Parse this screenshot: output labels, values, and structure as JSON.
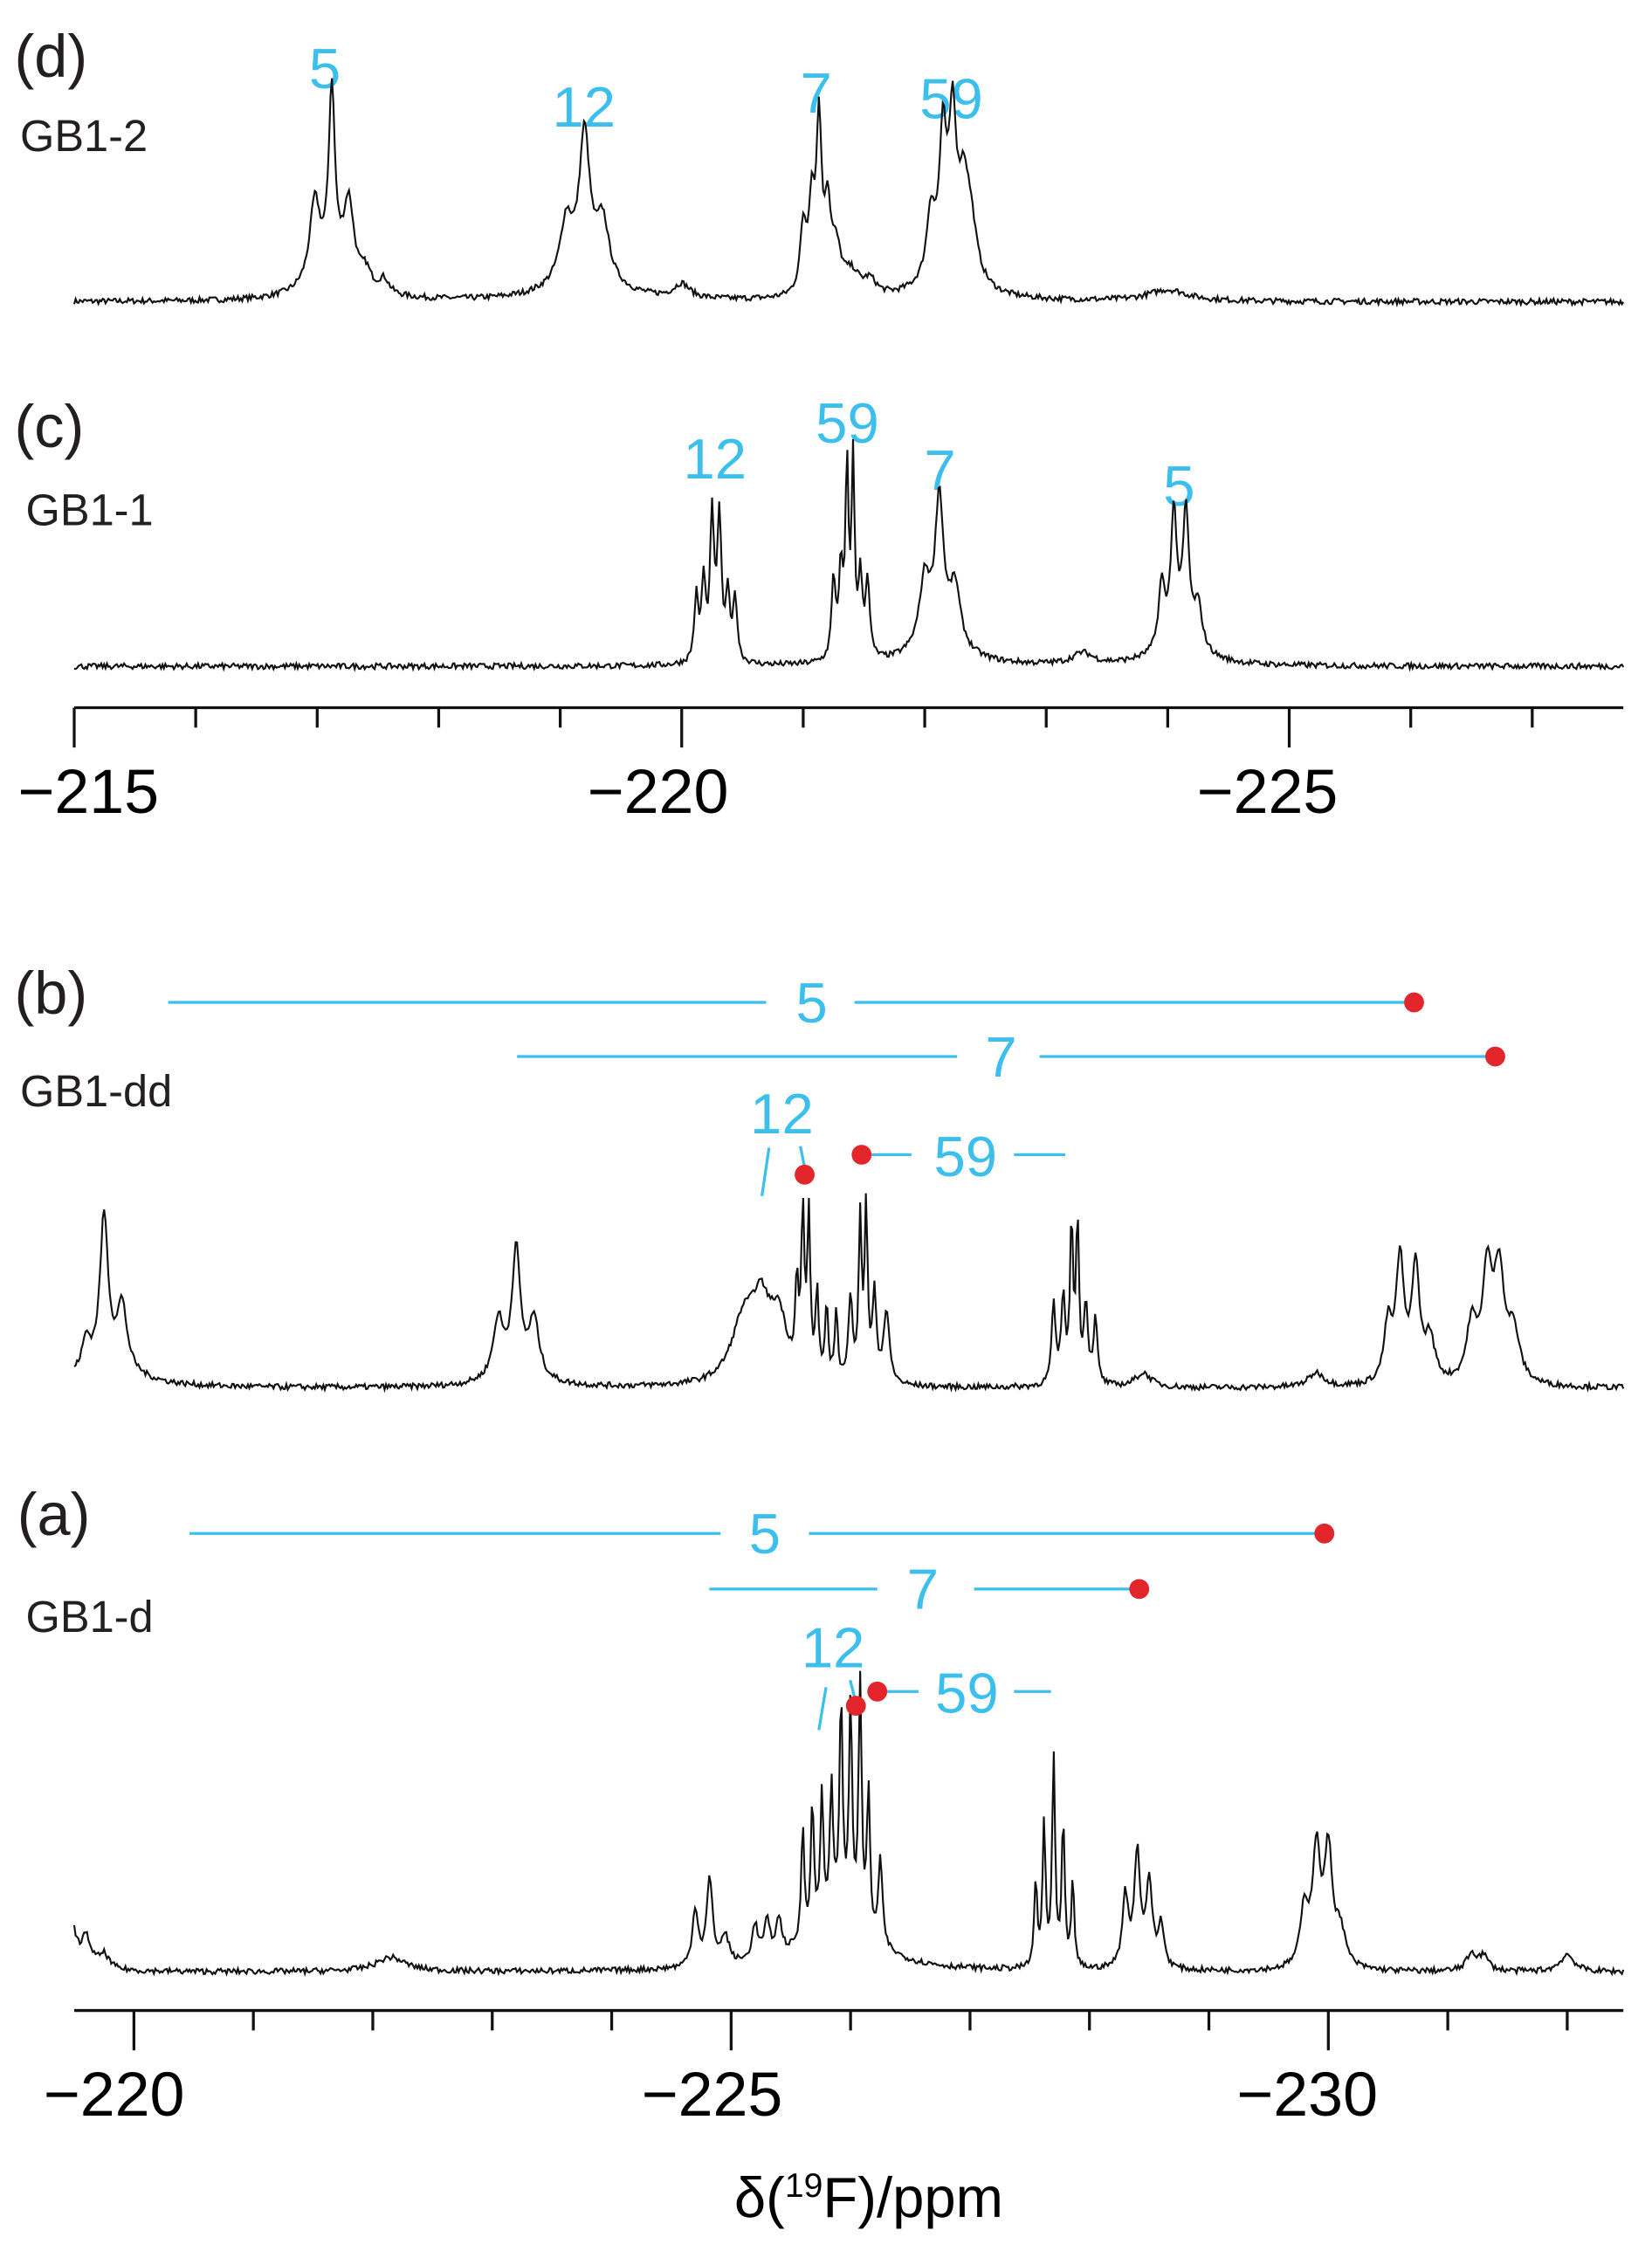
{
  "chart_data": [
    {
      "type": "line",
      "panel": "(d)",
      "sample": "GB1-2",
      "xlabel": "δ(19F)/ppm",
      "xlim": [
        -215,
        -227.75
      ],
      "peak_labels": [
        {
          "label": "5",
          "ppm": -217.12
        },
        {
          "label": "12",
          "ppm": -219.2
        },
        {
          "label": "7",
          "ppm": -221.13
        },
        {
          "label": "59",
          "ppm": -222.22
        }
      ],
      "lines": [
        [
          -216.98,
          55,
          0.05
        ],
        [
          -217.12,
          125,
          0.03
        ],
        [
          -217.26,
          55,
          0.05
        ],
        [
          -217.12,
          20,
          0.2
        ],
        [
          -217.4,
          12,
          0.05
        ],
        [
          -217.55,
          10,
          0.05
        ],
        [
          -219.05,
          40,
          0.06
        ],
        [
          -219.2,
          95,
          0.05
        ],
        [
          -219.35,
          40,
          0.06
        ],
        [
          -219.2,
          20,
          0.25
        ],
        [
          -220.0,
          10,
          0.08
        ],
        [
          -221.0,
          45,
          0.03
        ],
        [
          -221.07,
          60,
          0.03
        ],
        [
          -221.13,
          115,
          0.025
        ],
        [
          -221.2,
          55,
          0.03
        ],
        [
          -221.27,
          30,
          0.05
        ],
        [
          -221.4,
          15,
          0.08
        ],
        [
          -221.55,
          10,
          0.06
        ],
        [
          -222.05,
          45,
          0.04
        ],
        [
          -222.15,
          90,
          0.035
        ],
        [
          -222.23,
          100,
          0.035
        ],
        [
          -222.32,
          55,
          0.05
        ],
        [
          -222.38,
          35,
          0.06
        ],
        [
          -222.2,
          20,
          0.2
        ],
        [
          -224.0,
          8,
          0.2
        ]
      ]
    },
    {
      "type": "line",
      "panel": "(c)",
      "sample": "GB1-1",
      "xlim": [
        -215,
        -227.75
      ],
      "xticks": [
        "−215",
        "−220",
        "−225"
      ],
      "peak_labels": [
        {
          "label": "12",
          "ppm": -220.28
        },
        {
          "label": "59",
          "ppm": -221.38
        },
        {
          "label": "7",
          "ppm": -222.14
        },
        {
          "label": "5",
          "ppm": -224.1
        }
      ],
      "lines": [
        [
          -220.12,
          45,
          0.02
        ],
        [
          -220.18,
          55,
          0.02
        ],
        [
          -220.25,
          100,
          0.02
        ],
        [
          -220.31,
          100,
          0.02
        ],
        [
          -220.38,
          45,
          0.02
        ],
        [
          -220.44,
          45,
          0.02
        ],
        [
          -221.25,
          55,
          0.02
        ],
        [
          -221.31,
          60,
          0.02
        ],
        [
          -221.36,
          130,
          0.015
        ],
        [
          -221.41,
          135,
          0.015
        ],
        [
          -221.47,
          55,
          0.02
        ],
        [
          -221.53,
          55,
          0.02
        ],
        [
          -222.0,
          45,
          0.05
        ],
        [
          -222.12,
          95,
          0.04
        ],
        [
          -222.25,
          40,
          0.05
        ],
        [
          -222.12,
          20,
          0.2
        ],
        [
          -223.3,
          8,
          0.1
        ],
        [
          -223.95,
          45,
          0.03
        ],
        [
          -224.05,
          90,
          0.03
        ],
        [
          -224.15,
          90,
          0.03
        ],
        [
          -224.25,
          30,
          0.04
        ],
        [
          -224.1,
          15,
          0.2
        ]
      ]
    },
    {
      "type": "line",
      "panel": "(b)",
      "sample": "GB1-dd",
      "xlim": [
        -219.5,
        -232.47
      ],
      "correlations": [
        {
          "label": "5",
          "ppm": -230.6
        },
        {
          "label": "7",
          "ppm": -231.38
        },
        {
          "label": "12",
          "ppm": -225.6
        },
        {
          "label": "59",
          "ppm": -226.1
        }
      ],
      "lines": [
        [
          -219.6,
          20,
          0.04
        ],
        [
          -219.75,
          105,
          0.04
        ],
        [
          -219.9,
          45,
          0.05
        ],
        [
          -219.75,
          15,
          0.3
        ],
        [
          -223.05,
          40,
          0.05
        ],
        [
          -223.2,
          85,
          0.04
        ],
        [
          -223.35,
          40,
          0.05
        ],
        [
          -223.2,
          10,
          0.2
        ],
        [
          -225.1,
          40,
          0.12
        ],
        [
          -225.25,
          50,
          0.1
        ],
        [
          -225.4,
          40,
          0.08
        ],
        [
          -225.55,
          60,
          0.015
        ],
        [
          -225.6,
          110,
          0.015
        ],
        [
          -225.65,
          110,
          0.015
        ],
        [
          -225.72,
          60,
          0.015
        ],
        [
          -225.8,
          50,
          0.015
        ],
        [
          -225.88,
          50,
          0.015
        ],
        [
          -226.0,
          60,
          0.02
        ],
        [
          -226.08,
          110,
          0.015
        ],
        [
          -226.13,
          120,
          0.015
        ],
        [
          -226.2,
          60,
          0.02
        ],
        [
          -226.3,
          50,
          0.03
        ],
        [
          -227.7,
          55,
          0.02
        ],
        [
          -227.78,
          60,
          0.02
        ],
        [
          -227.85,
          110,
          0.015
        ],
        [
          -227.9,
          110,
          0.015
        ],
        [
          -227.97,
          55,
          0.02
        ],
        [
          -228.05,
          45,
          0.02
        ],
        [
          -228.45,
          10,
          0.08
        ],
        [
          -229.9,
          10,
          0.08
        ],
        [
          -230.5,
          40,
          0.04
        ],
        [
          -230.6,
          85,
          0.04
        ],
        [
          -230.73,
          80,
          0.04
        ],
        [
          -230.85,
          30,
          0.05
        ],
        [
          -231.2,
          40,
          0.05
        ],
        [
          -231.33,
          75,
          0.05
        ],
        [
          -231.43,
          75,
          0.05
        ],
        [
          -231.55,
          35,
          0.06
        ]
      ]
    },
    {
      "type": "line",
      "panel": "(a)",
      "sample": "GB1-d",
      "xlim": [
        -219.5,
        -232.47
      ],
      "xticks": [
        "−220",
        "−225",
        "−230"
      ],
      "correlations": [
        {
          "label": "5",
          "ppm": -230.0
        },
        {
          "label": "7",
          "ppm": -228.4
        },
        {
          "label": "12",
          "ppm": -226.0
        },
        {
          "label": "59",
          "ppm": -226.2
        }
      ],
      "lines": [
        [
          -219.75,
          10,
          0.05
        ],
        [
          -219.6,
          20,
          0.05
        ],
        [
          -219.45,
          55,
          0.04
        ],
        [
          -219.35,
          100,
          0.035
        ],
        [
          -219.2,
          35,
          0.04
        ],
        [
          -222.15,
          10,
          0.15
        ],
        [
          -224.7,
          40,
          0.03
        ],
        [
          -224.82,
          60,
          0.03
        ],
        [
          -224.95,
          20,
          0.04
        ],
        [
          -225.2,
          25,
          0.03
        ],
        [
          -225.3,
          25,
          0.03
        ],
        [
          -225.4,
          25,
          0.03
        ],
        [
          -225.6,
          80,
          0.015
        ],
        [
          -225.68,
          90,
          0.015
        ],
        [
          -225.76,
          90,
          0.015
        ],
        [
          -225.84,
          90,
          0.015
        ],
        [
          -225.92,
          150,
          0.015
        ],
        [
          -226.0,
          150,
          0.015
        ],
        [
          -226.08,
          170,
          0.015
        ],
        [
          -226.15,
          100,
          0.015
        ],
        [
          -226.25,
          60,
          0.02
        ],
        [
          -225.9,
          40,
          0.3
        ],
        [
          -227.55,
          60,
          0.015
        ],
        [
          -227.62,
          100,
          0.015
        ],
        [
          -227.7,
          145,
          0.015
        ],
        [
          -227.78,
          100,
          0.015
        ],
        [
          -227.86,
          60,
          0.015
        ],
        [
          -228.3,
          50,
          0.03
        ],
        [
          -228.4,
          80,
          0.03
        ],
        [
          -228.5,
          60,
          0.03
        ],
        [
          -228.6,
          30,
          0.03
        ],
        [
          -229.8,
          40,
          0.04
        ],
        [
          -229.9,
          80,
          0.04
        ],
        [
          -230.0,
          80,
          0.04
        ],
        [
          -230.1,
          25,
          0.05
        ],
        [
          -231.2,
          12,
          0.05
        ],
        [
          -231.3,
          10,
          0.05
        ],
        [
          -232.0,
          12,
          0.07
        ]
      ]
    }
  ],
  "labels": {
    "d": "(d)",
    "d_name": "GB1-2",
    "c": "(c)",
    "c_name": "GB1-1",
    "b": "(b)",
    "b_name": "GB1-dd",
    "a": "(a)",
    "a_name": "GB1-d",
    "xlabel_pre": "δ(",
    "xlabel_sup": "19",
    "xlabel_post": "F)/ppm"
  },
  "colors": {
    "assign": "#3dbfee",
    "dot": "#e3262b"
  }
}
